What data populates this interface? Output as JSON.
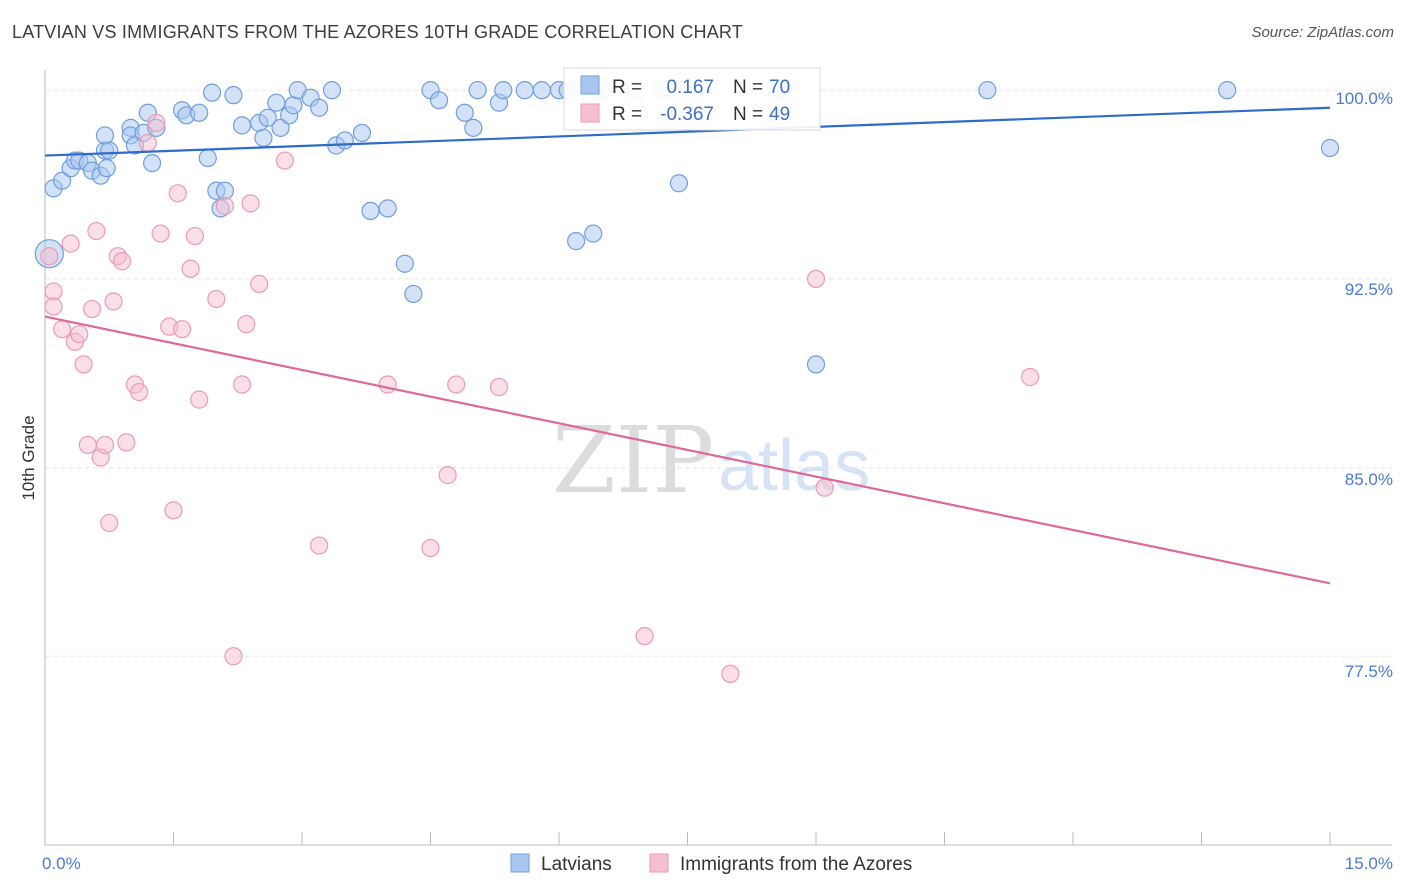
{
  "title": "LATVIAN VS IMMIGRANTS FROM THE AZORES 10TH GRADE CORRELATION CHART",
  "source": "Source: ZipAtlas.com",
  "watermark": {
    "part1": "ZIP",
    "part2": "atlas"
  },
  "colors": {
    "blue_fill": "#a9c6ef",
    "blue_stroke": "#6f9ede",
    "blue_line": "#2f6cc8",
    "pink_fill": "#f6bfd0",
    "pink_stroke": "#ec9ab4",
    "pink_line": "#e0679a",
    "grid": "#e6e6e6",
    "tick_text": "#4a7bd0"
  },
  "chart_data": {
    "type": "scatter",
    "title": "LATVIAN VS IMMIGRANTS FROM THE AZORES 10TH GRADE CORRELATION CHART",
    "xlabel": "",
    "ylabel": "10th Grade",
    "xlim": [
      0,
      15
    ],
    "ylim": [
      70,
      100.8
    ],
    "x_tick_labels": [
      "0.0%",
      "15.0%"
    ],
    "y_ticks": [
      77.5,
      85.0,
      92.5,
      100.0
    ],
    "y_tick_labels": [
      "77.5%",
      "85.0%",
      "92.5%",
      "100.0%"
    ],
    "legend_stats": [
      {
        "r_label": "R =",
        "r_value": "0.167",
        "n_label": "N =",
        "n_value": "70"
      },
      {
        "r_label": "R =",
        "r_value": "-0.367",
        "n_label": "N =",
        "n_value": "49"
      }
    ],
    "series": [
      {
        "name": "Latvians",
        "color": "#a9c6ef",
        "trend": {
          "x": [
            0,
            15
          ],
          "y": [
            97.4,
            99.3
          ]
        },
        "points": [
          [
            0.05,
            93.5
          ],
          [
            0.1,
            96.1
          ],
          [
            0.2,
            96.4
          ],
          [
            0.3,
            96.9
          ],
          [
            0.35,
            97.2
          ],
          [
            0.4,
            97.2
          ],
          [
            0.5,
            97.1
          ],
          [
            0.55,
            96.8
          ],
          [
            0.65,
            96.6
          ],
          [
            0.72,
            96.9
          ],
          [
            0.7,
            97.6
          ],
          [
            0.75,
            97.6
          ],
          [
            0.7,
            98.2
          ],
          [
            1.0,
            98.5
          ],
          [
            1.0,
            98.2
          ],
          [
            1.05,
            97.8
          ],
          [
            1.15,
            98.3
          ],
          [
            1.2,
            99.1
          ],
          [
            1.3,
            98.5
          ],
          [
            1.25,
            97.1
          ],
          [
            1.6,
            99.2
          ],
          [
            1.65,
            99.0
          ],
          [
            1.8,
            99.1
          ],
          [
            1.9,
            97.3
          ],
          [
            1.95,
            99.9
          ],
          [
            2.0,
            96.0
          ],
          [
            2.05,
            95.3
          ],
          [
            2.1,
            96.0
          ],
          [
            2.2,
            99.8
          ],
          [
            2.3,
            98.6
          ],
          [
            2.5,
            98.7
          ],
          [
            2.55,
            98.1
          ],
          [
            2.6,
            98.9
          ],
          [
            2.7,
            99.5
          ],
          [
            2.75,
            98.5
          ],
          [
            2.85,
            99.0
          ],
          [
            2.9,
            99.4
          ],
          [
            2.95,
            100.0
          ],
          [
            3.1,
            99.7
          ],
          [
            3.2,
            99.3
          ],
          [
            3.35,
            100.0
          ],
          [
            3.4,
            97.8
          ],
          [
            3.5,
            98.0
          ],
          [
            3.7,
            98.3
          ],
          [
            3.8,
            95.2
          ],
          [
            4.0,
            95.3
          ],
          [
            4.2,
            93.1
          ],
          [
            4.3,
            91.9
          ],
          [
            4.5,
            100.0
          ],
          [
            4.6,
            99.6
          ],
          [
            4.9,
            99.1
          ],
          [
            5.0,
            98.5
          ],
          [
            5.05,
            100.0
          ],
          [
            5.3,
            99.5
          ],
          [
            5.35,
            100.0
          ],
          [
            5.6,
            100.0
          ],
          [
            5.8,
            100.0
          ],
          [
            6.0,
            100.0
          ],
          [
            6.1,
            100.0
          ],
          [
            6.2,
            94.0
          ],
          [
            6.4,
            94.3
          ],
          [
            6.5,
            100.0
          ],
          [
            6.9,
            100.0
          ],
          [
            7.2,
            100.0
          ],
          [
            7.4,
            96.3
          ],
          [
            8.6,
            100.0
          ],
          [
            9.0,
            89.1
          ],
          [
            11.0,
            100.0
          ],
          [
            13.8,
            100.0
          ],
          [
            15.0,
            97.7
          ]
        ]
      },
      {
        "name": "Immigrants from the Azores",
        "color": "#f6bfd0",
        "trend": {
          "x": [
            0,
            15
          ],
          "y": [
            91.0,
            80.4
          ]
        },
        "points": [
          [
            0.05,
            93.4
          ],
          [
            0.1,
            92.0
          ],
          [
            0.1,
            91.4
          ],
          [
            0.2,
            90.5
          ],
          [
            0.3,
            93.9
          ],
          [
            0.35,
            90.0
          ],
          [
            0.4,
            90.3
          ],
          [
            0.45,
            89.1
          ],
          [
            0.5,
            85.9
          ],
          [
            0.55,
            91.3
          ],
          [
            0.6,
            94.4
          ],
          [
            0.65,
            85.4
          ],
          [
            0.7,
            85.9
          ],
          [
            0.75,
            82.8
          ],
          [
            0.8,
            91.6
          ],
          [
            0.85,
            93.4
          ],
          [
            0.9,
            93.2
          ],
          [
            0.95,
            86.0
          ],
          [
            1.05,
            88.3
          ],
          [
            1.1,
            88.0
          ],
          [
            1.2,
            97.9
          ],
          [
            1.3,
            98.7
          ],
          [
            1.35,
            94.3
          ],
          [
            1.45,
            90.6
          ],
          [
            1.5,
            83.3
          ],
          [
            1.55,
            95.9
          ],
          [
            1.6,
            90.5
          ],
          [
            1.7,
            92.9
          ],
          [
            1.75,
            94.2
          ],
          [
            1.8,
            87.7
          ],
          [
            2.0,
            91.7
          ],
          [
            2.1,
            95.4
          ],
          [
            2.2,
            77.5
          ],
          [
            2.3,
            88.3
          ],
          [
            2.35,
            90.7
          ],
          [
            2.4,
            95.5
          ],
          [
            2.5,
            92.3
          ],
          [
            2.8,
            97.2
          ],
          [
            3.2,
            81.9
          ],
          [
            4.0,
            88.3
          ],
          [
            4.5,
            81.8
          ],
          [
            4.7,
            84.7
          ],
          [
            4.8,
            88.3
          ],
          [
            5.3,
            88.2
          ],
          [
            7.0,
            78.3
          ],
          [
            8.0,
            76.8
          ],
          [
            9.0,
            92.5
          ],
          [
            9.1,
            84.2
          ],
          [
            11.5,
            88.6
          ]
        ]
      }
    ]
  }
}
